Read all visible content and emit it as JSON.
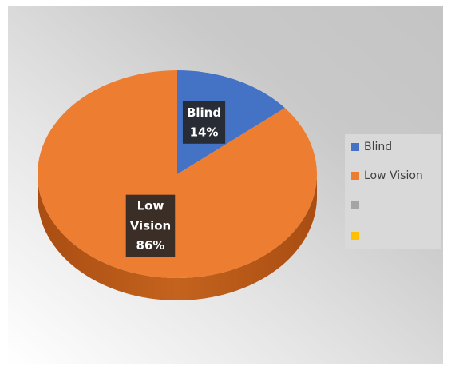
{
  "chart_data": {
    "type": "pie",
    "categories": [
      "Blind",
      "Low Vision",
      null,
      null
    ],
    "values": [
      14,
      86,
      null,
      null
    ],
    "value_labels": [
      "14%",
      "86%",
      null,
      null
    ],
    "colors": [
      "#4472c4",
      "#ed7d31",
      "#a5a5a5",
      "#ffc000"
    ],
    "legend": "right"
  }
}
